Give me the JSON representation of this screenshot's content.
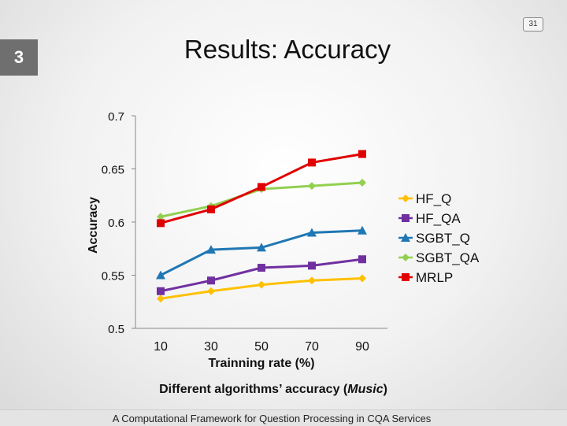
{
  "slide": {
    "page_number": "31",
    "section": "3",
    "title": "Results: Accuracy",
    "caption_prefix": "Different algorithms’ accuracy (",
    "caption_italic": "Music",
    "caption_suffix": ")",
    "footer": "A Computational Framework for Question Processing in CQA Services"
  },
  "chart_data": {
    "type": "line",
    "title": "",
    "xlabel": "Trainning rate (%)",
    "ylabel": "Accuracy",
    "x": [
      10,
      30,
      50,
      70,
      90
    ],
    "xlim": [
      0,
      100
    ],
    "ylim": [
      0.5,
      0.7
    ],
    "yticks": [
      "0.5",
      "0.55",
      "0.6",
      "0.65",
      "0.7"
    ],
    "xticks": [
      "10",
      "30",
      "50",
      "70",
      "90"
    ],
    "grid": false,
    "legend": "right",
    "series": [
      {
        "name": "HF_Q",
        "color": "#FFC000",
        "marker": "diamond",
        "values": [
          0.528,
          0.535,
          0.541,
          0.545,
          0.547
        ]
      },
      {
        "name": "HF_QA",
        "color": "#7030A0",
        "marker": "square",
        "values": [
          0.535,
          0.545,
          0.557,
          0.559,
          0.565
        ]
      },
      {
        "name": "SGBT_Q",
        "color": "#1F77B4",
        "marker": "triangle",
        "values": [
          0.55,
          0.574,
          0.576,
          0.59,
          0.592
        ]
      },
      {
        "name": "SGBT_QA",
        "color": "#92D050",
        "marker": "diamond",
        "values": [
          0.605,
          0.615,
          0.631,
          0.634,
          0.637
        ]
      },
      {
        "name": "MRLP",
        "color": "#E00000",
        "marker": "square",
        "values": [
          0.599,
          0.612,
          0.633,
          0.656,
          0.664
        ]
      }
    ]
  }
}
